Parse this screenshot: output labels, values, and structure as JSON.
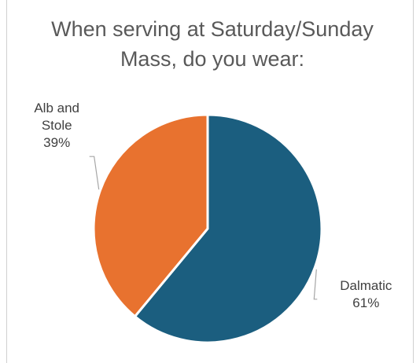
{
  "chart_data": {
    "type": "pie",
    "title": "When serving at Saturday/Sunday Mass, do you wear:",
    "categories": [
      "Dalmatic",
      "Alb and Stole"
    ],
    "values": [
      61,
      39
    ],
    "value_labels": [
      "61%",
      "39%"
    ],
    "colors": [
      "#1b5e7f",
      "#e8722f"
    ]
  }
}
